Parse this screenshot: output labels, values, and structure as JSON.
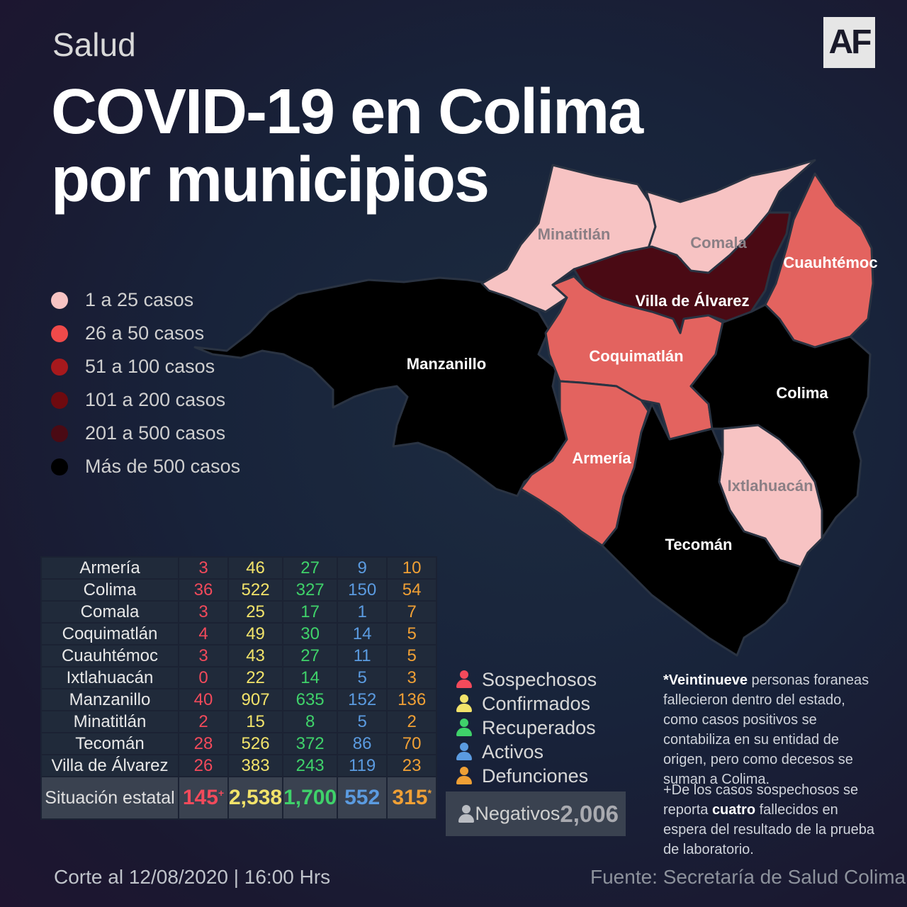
{
  "header": {
    "section": "Salud",
    "title_line1": "COVID-19 en Colima",
    "title_line2": "por municipios",
    "logo": "AF"
  },
  "colors": {
    "level_1": "#f7c3c3",
    "level_2": "#e3635f",
    "level_3": "#a7191d",
    "level_4": "#6e0a0f",
    "level_5": "#4a0a14",
    "level_6": "#000000"
  },
  "legend": [
    {
      "label": "1 a 25 casos",
      "color": "#f7c3c3"
    },
    {
      "label": "26 a  50 casos",
      "color": "#ef4a4a"
    },
    {
      "label": "51 a  100 casos",
      "color": "#a7191d"
    },
    {
      "label": "101 a  200 casos",
      "color": "#6e0a0f"
    },
    {
      "label": "201  a  500 casos",
      "color": "#4a0a14"
    },
    {
      "label": "Más de 500 casos",
      "color": "#000000"
    }
  ],
  "map_labels": {
    "minatitlan": "Minatitlán",
    "comala": "Comala",
    "cuauhtemoc": "Cuauhtémoc",
    "villa": "Villa de Álvarez",
    "manzanillo": "Manzanillo",
    "coquimatlan": "Coquimatlán",
    "colima": "Colima",
    "armeria": "Armería",
    "ixtlahuacan": "Ixtlahuacán",
    "tecoman": "Tecomán"
  },
  "table": {
    "rows": [
      {
        "name": "Armería",
        "s": "3",
        "c": "46",
        "r": "27",
        "a": "9",
        "d": "10"
      },
      {
        "name": "Colima",
        "s": "36",
        "c": "522",
        "r": "327",
        "a": "150",
        "d": "54"
      },
      {
        "name": "Comala",
        "s": "3",
        "c": "25",
        "r": "17",
        "a": "1",
        "d": "7"
      },
      {
        "name": "Coquimatlán",
        "s": "4",
        "c": "49",
        "r": "30",
        "a": "14",
        "d": "5"
      },
      {
        "name": "Cuauhtémoc",
        "s": "3",
        "c": "43",
        "r": "27",
        "a": "11",
        "d": "5"
      },
      {
        "name": "Ixtlahuacán",
        "s": "0",
        "c": "22",
        "r": "14",
        "a": "5",
        "d": "3"
      },
      {
        "name": "Manzanillo",
        "s": "40",
        "c": "907",
        "r": "635",
        "a": "152",
        "d": "136"
      },
      {
        "name": "Minatitlán",
        "s": "2",
        "c": "15",
        "r": "8",
        "a": "5",
        "d": "2"
      },
      {
        "name": "Tecomán",
        "s": "28",
        "c": "526",
        "r": "372",
        "a": "86",
        "d": "70"
      },
      {
        "name": "Villa de Álvarez",
        "s": "26",
        "c": "383",
        "r": "243",
        "a": "119",
        "d": "23"
      }
    ],
    "total": {
      "name": "Situación estatal",
      "s": "145",
      "s_mark": "+",
      "c": "2,538",
      "r": "1,700",
      "a": "552",
      "d": "315",
      "d_mark": "*"
    }
  },
  "categories": [
    {
      "label": "Sospechosos",
      "color": "#f24a5b"
    },
    {
      "label": "Confirmados",
      "color": "#f2e36a"
    },
    {
      "label": "Recuperados",
      "color": "#3fd26a"
    },
    {
      "label": "Activos",
      "color": "#5b9be0"
    },
    {
      "label": "Defunciones",
      "color": "#f0a035"
    }
  ],
  "negatives": {
    "label": "Negativos",
    "value": "2,006",
    "color": "#a9aab0"
  },
  "notes": {
    "note1_bold": "*Veintinueve",
    "note1_rest": " personas foraneas fallecieron dentro del estado, como casos positivos se contabiliza en su entidad de origen, pero como decesos se suman a Colima.",
    "note2_start": "+De los casos sospechosos se reporta ",
    "note2_bold": "cuatro",
    "note2_rest": " fallecidos en espera del resultado de la prueba de laboratorio."
  },
  "footer": {
    "cutoff": "Corte al 12/08/2020 | 16:00 Hrs",
    "source": "Fuente: Secretaría de Salud Colima"
  }
}
